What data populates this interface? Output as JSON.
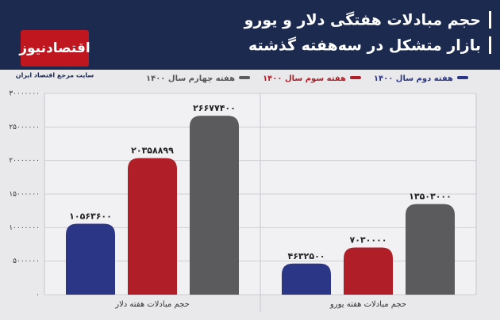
{
  "logo": {
    "name": "اقتصادنیوز",
    "tagline": "سایت مرجع اقتصاد ایران"
  },
  "chart_data": {
    "type": "bar",
    "title": "حجم مبادلات هفتگی دلار و یورو",
    "subtitle": "بازار متشکل در سه‌هفته گذشته",
    "categories": [
      "حجم مبادلات هفته دلار",
      "حجم مبادلات هفته یورو"
    ],
    "series": [
      {
        "name": "هفته دوم سال ۱۴۰۰",
        "color": "#2b3687",
        "values": [
          10563600,
          4632500
        ],
        "value_labels": [
          "۱۰۵۶۳۶۰۰",
          "۴۶۳۲۵۰۰"
        ]
      },
      {
        "name": "هفته سوم سال ۱۴۰۰",
        "color": "#b01f28",
        "values": [
          20358899,
          7030000
        ],
        "value_labels": [
          "۲۰۳۵۸۸۹۹",
          "۷۰۳۰۰۰۰"
        ]
      },
      {
        "name": "هفته چهارم سال ۱۴۰۰",
        "color": "#5b5b5e",
        "values": [
          26677400,
          13503000
        ],
        "value_labels": [
          "۲۶۶۷۷۴۰۰",
          "۱۳۵۰۳۰۰۰"
        ]
      }
    ],
    "ylim": [
      0,
      30000000
    ],
    "yticks": [
      {
        "value": 0,
        "label": "۰"
      },
      {
        "value": 5000000,
        "label": "۵۰۰۰۰۰۰"
      },
      {
        "value": 10000000,
        "label": "۱۰۰۰۰۰۰۰"
      },
      {
        "value": 15000000,
        "label": "۱۵۰۰۰۰۰۰"
      },
      {
        "value": 20000000,
        "label": "۲۰۰۰۰۰۰۰"
      },
      {
        "value": 25000000,
        "label": "۲۵۰۰۰۰۰۰"
      },
      {
        "value": 30000000,
        "label": "۳۰۰۰۰۰۰۰"
      }
    ],
    "grid": true
  }
}
